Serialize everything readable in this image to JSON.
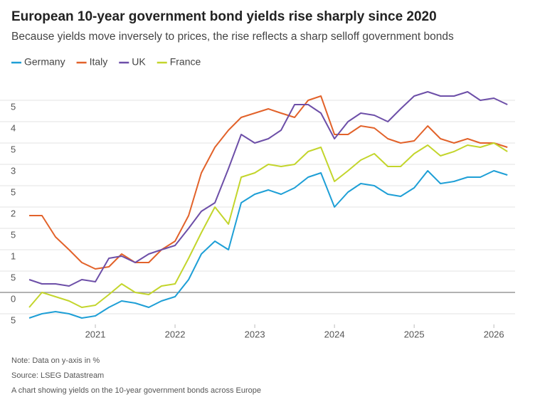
{
  "chart_data": {
    "type": "line",
    "title": "European 10-year government bond yields rise sharply since 2020",
    "subtitle": "Because yields move inversely to prices, the rise reflects a sharp selloff government bonds",
    "notes": [
      "Note: Data on y-axis in %",
      "Source: LSEG Datastream",
      "A chart showing yields on the 10-year government bonds across Europe"
    ],
    "x": [
      2020.17,
      2020.33,
      2020.5,
      2020.67,
      2020.83,
      2021.0,
      2021.17,
      2021.33,
      2021.5,
      2021.67,
      2021.83,
      2022.0,
      2022.17,
      2022.33,
      2022.5,
      2022.67,
      2022.83,
      2023.0,
      2023.17,
      2023.33,
      2023.5,
      2023.67,
      2023.83,
      2024.0,
      2024.17,
      2024.33,
      2024.5,
      2024.67,
      2024.83,
      2025.0,
      2025.17,
      2025.33,
      2025.5,
      2025.67,
      2025.83,
      2026.0,
      2026.17
    ],
    "series": [
      {
        "name": "Germany",
        "color": "#1e9fd6",
        "values": [
          -0.6,
          -0.5,
          -0.45,
          -0.5,
          -0.6,
          -0.55,
          -0.35,
          -0.2,
          -0.25,
          -0.35,
          -0.2,
          -0.1,
          0.3,
          0.9,
          1.2,
          1.0,
          2.1,
          2.3,
          2.4,
          2.3,
          2.45,
          2.7,
          2.8,
          2.0,
          2.35,
          2.55,
          2.5,
          2.3,
          2.25,
          2.45,
          2.85,
          2.55,
          2.6,
          2.7,
          2.7,
          2.85,
          2.75
        ]
      },
      {
        "name": "Italy",
        "color": "#e2622a",
        "values": [
          1.8,
          1.8,
          1.3,
          1.0,
          0.7,
          0.55,
          0.6,
          0.9,
          0.7,
          0.7,
          1.0,
          1.2,
          1.8,
          2.8,
          3.4,
          3.8,
          4.1,
          4.2,
          4.3,
          4.2,
          4.1,
          4.5,
          4.6,
          3.7,
          3.7,
          3.9,
          3.85,
          3.6,
          3.5,
          3.55,
          3.9,
          3.6,
          3.5,
          3.6,
          3.5,
          3.5,
          3.4
        ]
      },
      {
        "name": "UK",
        "color": "#6d4fa8",
        "values": [
          0.3,
          0.2,
          0.2,
          0.15,
          0.3,
          0.25,
          0.8,
          0.85,
          0.7,
          0.9,
          1.0,
          1.1,
          1.5,
          1.9,
          2.1,
          2.9,
          3.7,
          3.5,
          3.6,
          3.8,
          4.4,
          4.4,
          4.2,
          3.6,
          4.0,
          4.2,
          4.15,
          4.0,
          4.3,
          4.6,
          4.7,
          4.6,
          4.6,
          4.7,
          4.5,
          4.55,
          4.4
        ]
      },
      {
        "name": "France",
        "color": "#c3d52c",
        "values": [
          -0.35,
          0.0,
          -0.1,
          -0.2,
          -0.35,
          -0.3,
          -0.05,
          0.2,
          0.0,
          -0.05,
          0.15,
          0.2,
          0.8,
          1.4,
          2.0,
          1.6,
          2.7,
          2.8,
          3.0,
          2.95,
          3.0,
          3.3,
          3.4,
          2.6,
          2.85,
          3.1,
          3.25,
          2.95,
          2.95,
          3.25,
          3.45,
          3.2,
          3.3,
          3.45,
          3.4,
          3.5,
          3.3
        ]
      }
    ],
    "xlim": [
      2020,
      2026.4
    ],
    "xticks": [
      2021,
      2022,
      2023,
      2024,
      2025,
      2026
    ],
    "ylim": [
      -0.75,
      5.0
    ],
    "yticks": [
      {
        "value": 4.5,
        "label": "5"
      },
      4,
      {
        "value": 3.5,
        "label": "5"
      },
      3,
      {
        "value": 2.5,
        "label": "5"
      },
      2,
      {
        "value": 1.5,
        "label": "5"
      },
      1,
      {
        "value": 0.5,
        "label": "5"
      },
      0,
      {
        "value": -0.5,
        "label": "5"
      }
    ],
    "grid": true
  }
}
